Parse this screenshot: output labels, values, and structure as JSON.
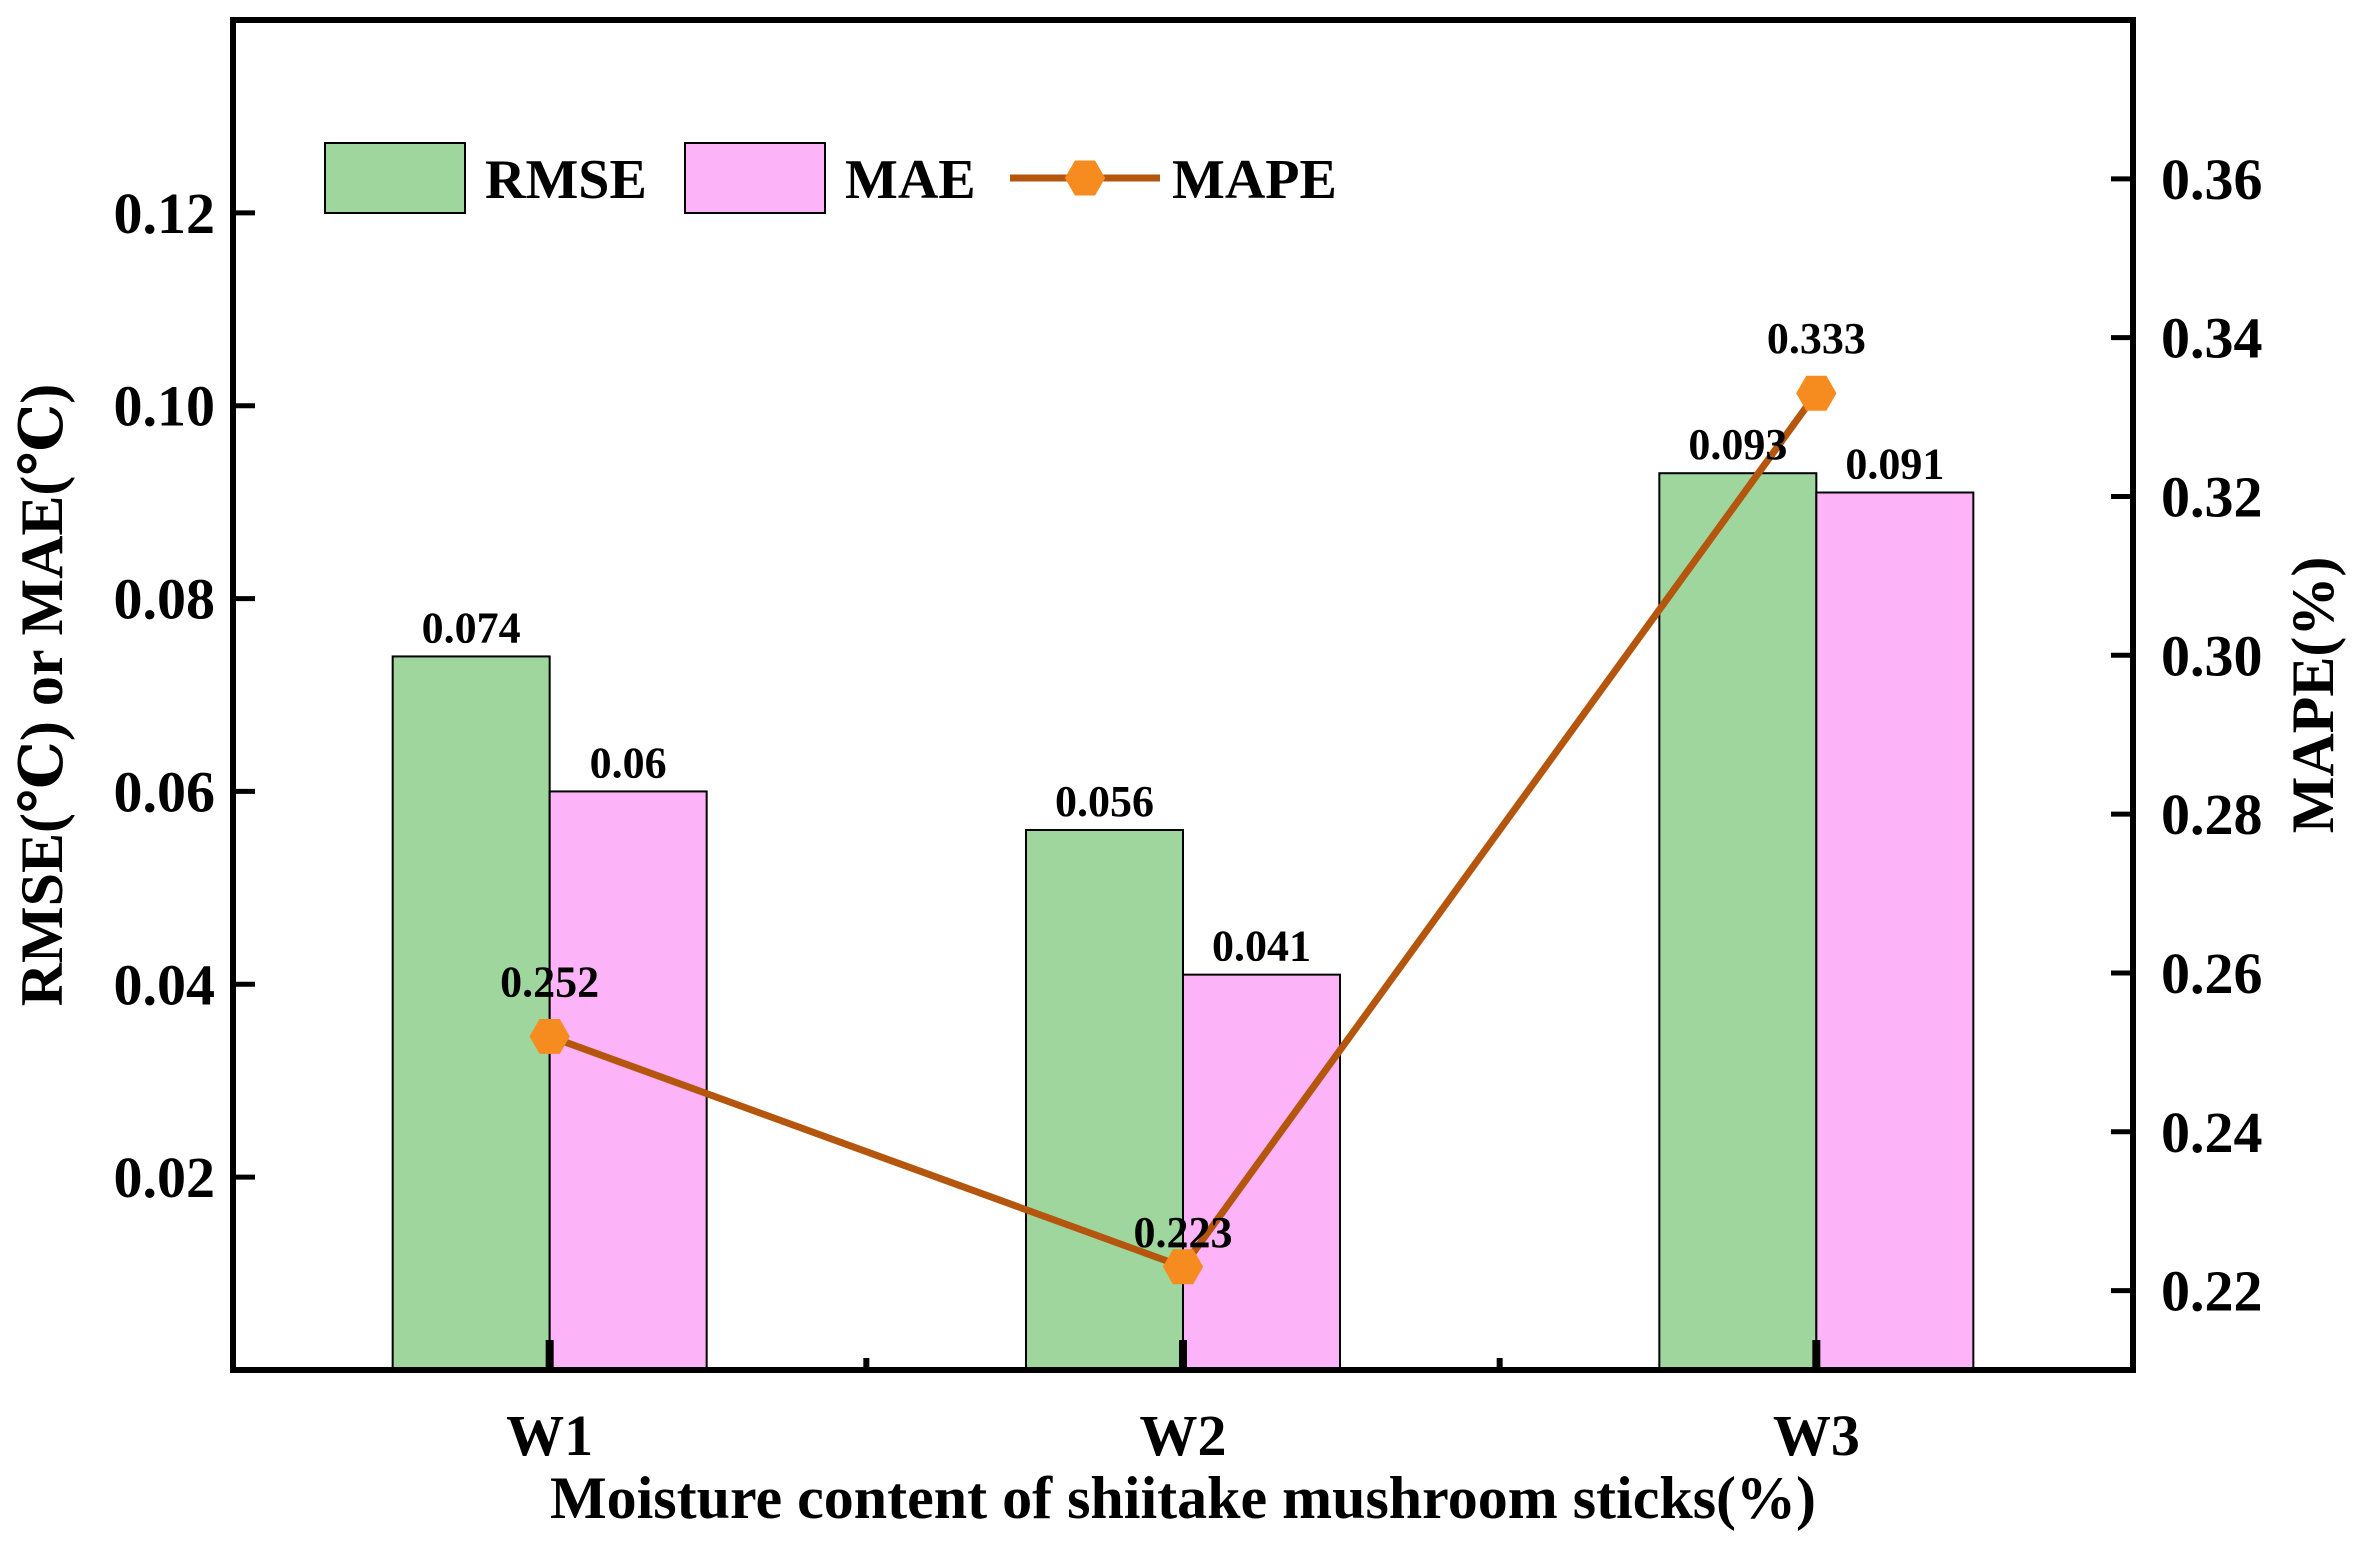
{
  "chart_data": {
    "type": "bar",
    "categories": [
      "W1",
      "W2",
      "W3"
    ],
    "series": [
      {
        "name": "RMSE",
        "axis": "left",
        "kind": "bar",
        "color": "#9ED69E",
        "values": [
          0.074,
          0.056,
          0.093
        ],
        "labels": [
          "0.074",
          "0.056",
          "0.093"
        ]
      },
      {
        "name": "MAE",
        "axis": "left",
        "kind": "bar",
        "color": "#FCB3F7",
        "values": [
          0.06,
          0.041,
          0.091
        ],
        "labels": [
          "0.06",
          "0.041",
          "0.091"
        ]
      },
      {
        "name": "MAPE",
        "axis": "right",
        "kind": "line",
        "color": "#B5560E",
        "marker_color": "#F68B1F",
        "values": [
          0.252,
          0.223,
          0.333
        ],
        "labels": [
          "0.252",
          "0.223",
          "0.333"
        ]
      }
    ],
    "xlabel": "Moisture content of shiitake mushroom sticks(%)",
    "ylabel": "RMSE(℃) or MAE(℃)",
    "y2label": "MAPE(%)",
    "ylim": [
      0.0,
      0.14
    ],
    "y2lim": [
      0.21,
      0.38
    ],
    "yticks": [
      0.02,
      0.04,
      0.06,
      0.08,
      0.1,
      0.12
    ],
    "ytick_labels": [
      "0.02",
      "0.04",
      "0.06",
      "0.08",
      "0.10",
      "0.12"
    ],
    "y2ticks": [
      0.22,
      0.24,
      0.26,
      0.28,
      0.3,
      0.32,
      0.34,
      0.36
    ],
    "y2tick_labels": [
      "0.22",
      "0.24",
      "0.26",
      "0.28",
      "0.30",
      "0.32",
      "0.34",
      "0.36"
    ],
    "legend": {
      "position": "top-left",
      "items": [
        "RMSE",
        "MAE",
        "MAPE"
      ]
    },
    "grid": false
  }
}
